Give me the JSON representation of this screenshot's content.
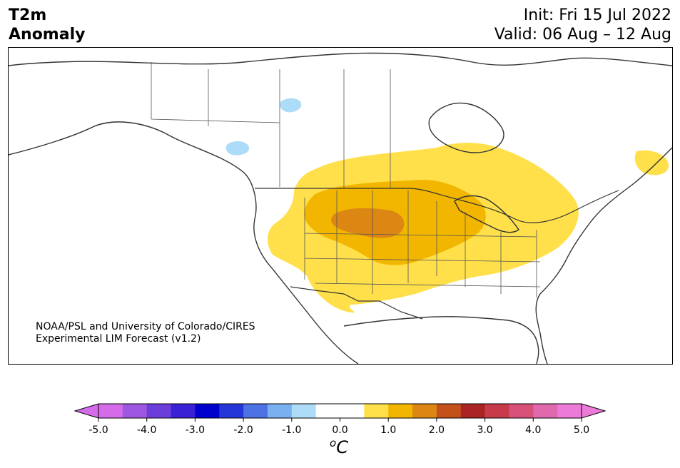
{
  "title": {
    "line1": "T2m",
    "line2": "Anomaly"
  },
  "forecast": {
    "init": "Init: Fri 15 Jul 2022",
    "valid": "Valid: 06 Aug – 12 Aug"
  },
  "credit": {
    "line1": "NOAA/PSL and University of Colorado/CIRES",
    "line2": "Experimental LIM Forecast (v1.2)"
  },
  "colorbar": {
    "colors": [
      "#d46ce9",
      "#9d57e0",
      "#6b3ddb",
      "#3b21d5",
      "#0000cc",
      "#2436d8",
      "#4c72e4",
      "#78b0f0",
      "#addcf9",
      "#ffffff",
      "#ffffff",
      "#ffe04a",
      "#f2b600",
      "#dc8614",
      "#c4511a",
      "#ab2424",
      "#c63a4a",
      "#d65079",
      "#e068ad",
      "#ec7ad7"
    ],
    "min_arrow_color": "#d46ce9",
    "max_arrow_color": "#ec7ad7",
    "ticks": [
      "-5.0",
      "-4.0",
      "-3.0",
      "-2.0",
      "-1.0",
      "0.0",
      "1.0",
      "2.0",
      "3.0",
      "4.0",
      "5.0"
    ],
    "unit_base": "C",
    "unit_sup": "o"
  },
  "anomaly_levels": {
    "light_yellow": "#ffe04a",
    "orange": "#f2b600",
    "dark_orange": "#dc8614",
    "light_blue": "#addcf9"
  }
}
